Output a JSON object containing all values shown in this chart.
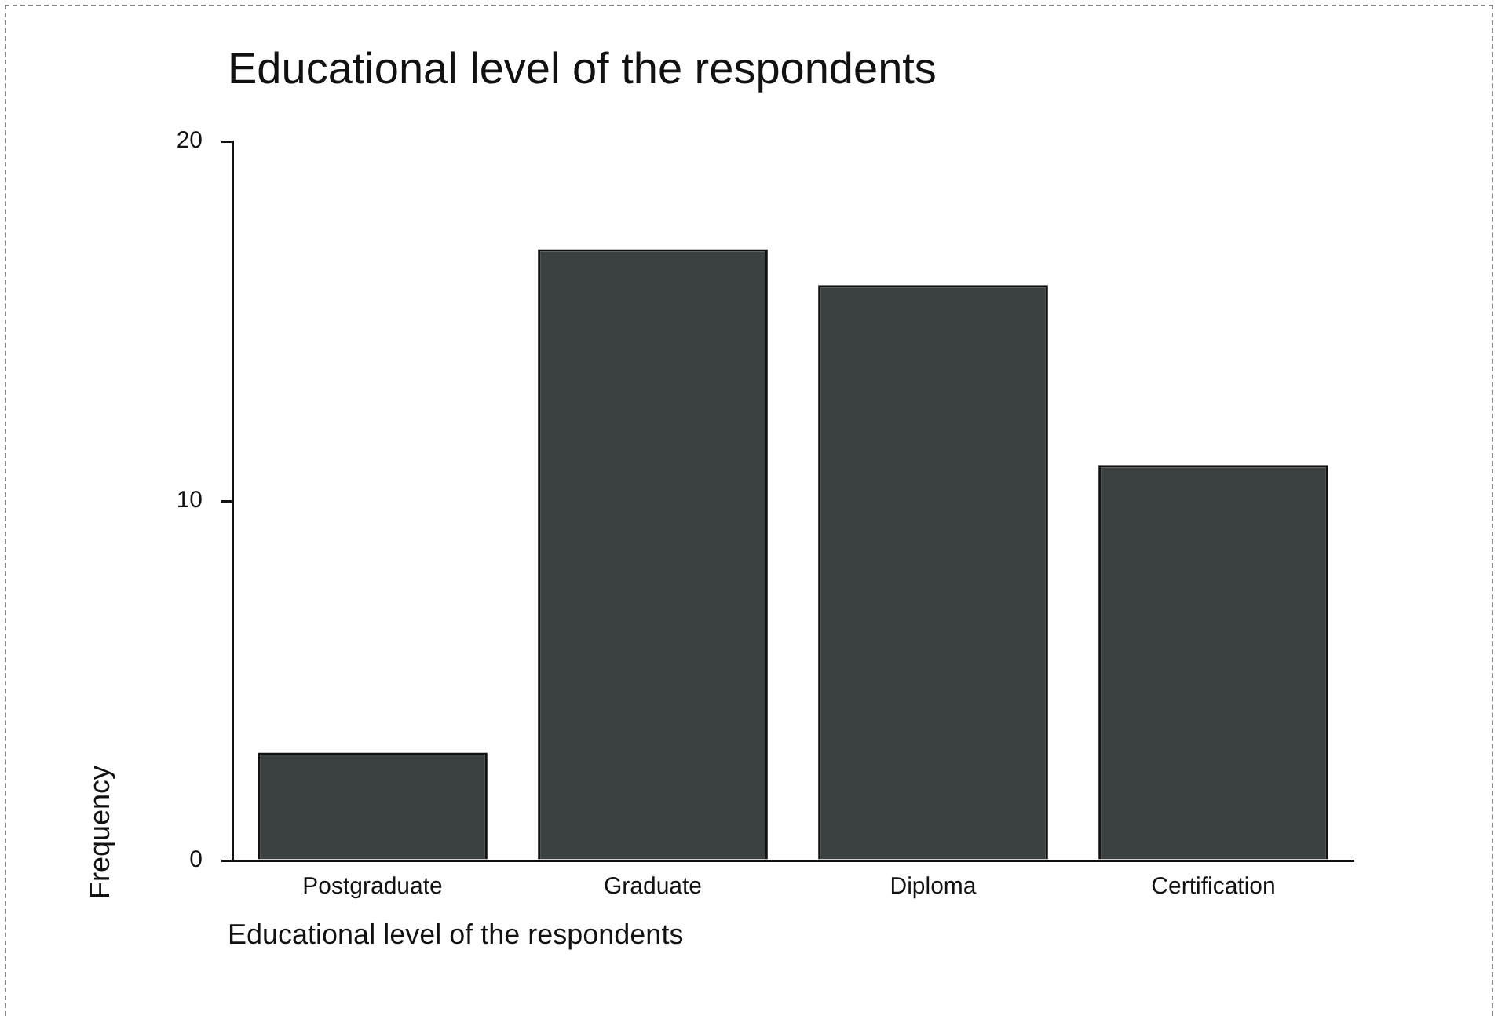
{
  "chart_data": {
    "type": "bar",
    "title": "Educational level of the respondents",
    "xlabel": "Educational level of the respondents",
    "ylabel": "Frequency",
    "categories": [
      "Postgraduate",
      "Graduate",
      "Diploma",
      "Certification"
    ],
    "values": [
      3,
      17,
      16,
      11
    ],
    "color": "#3b4040",
    "ylim": [
      0,
      20
    ],
    "yticks": [
      0,
      10,
      20
    ],
    "grid": false,
    "legend": false
  }
}
